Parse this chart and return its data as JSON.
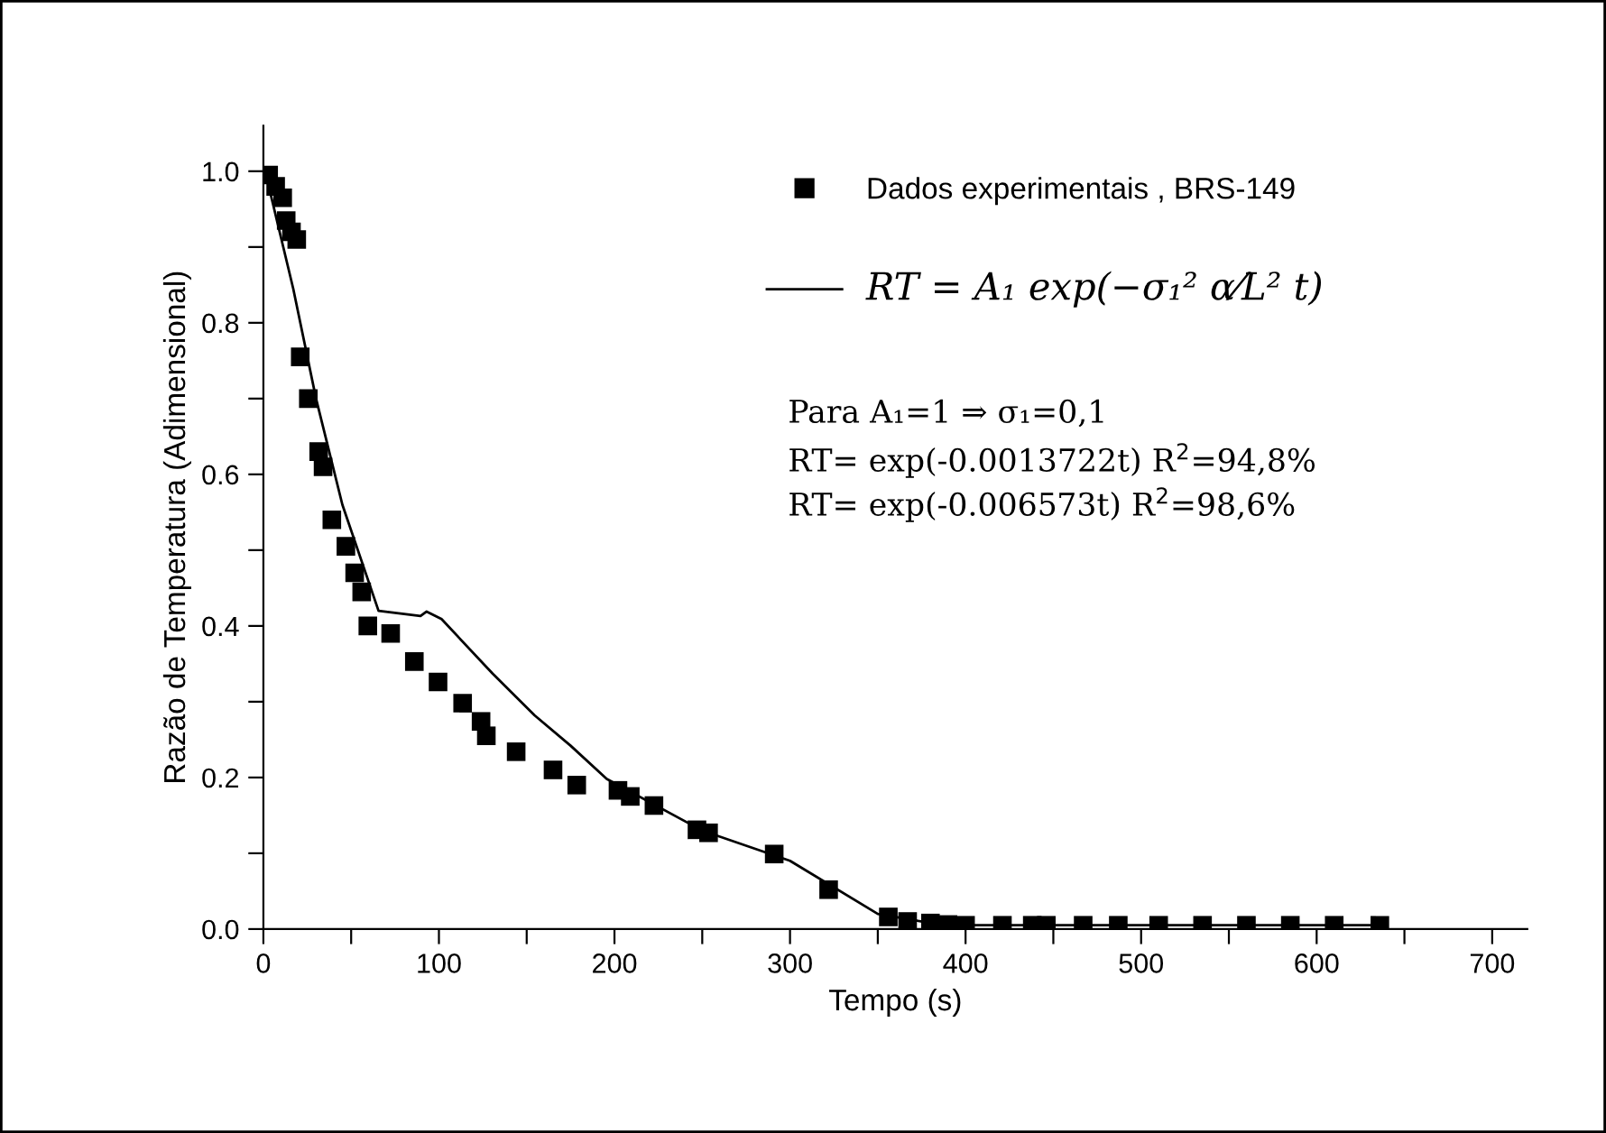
{
  "chart_data": {
    "type": "scatter",
    "xlabel": "Tempo (s)",
    "ylabel": "Razão de Temperatura (Adimensional)",
    "xlim": [
      0,
      720
    ],
    "ylim": [
      0,
      1.06
    ],
    "xticks": [
      0,
      {
        "value": 50,
        "label": null
      },
      100,
      {
        "value": 150,
        "label": null
      },
      200,
      {
        "value": 250,
        "label": null
      },
      300,
      {
        "value": 350,
        "label": null
      },
      400,
      {
        "value": 450,
        "label": null
      },
      500,
      {
        "value": 550,
        "label": null
      },
      600,
      {
        "value": 650,
        "label": null
      },
      700
    ],
    "yticks": [
      {
        "value": 0,
        "label": "0.0"
      },
      {
        "value": 0.1,
        "label": null
      },
      0.2,
      {
        "value": 0.3,
        "label": null
      },
      0.4,
      {
        "value": 0.5,
        "label": null
      },
      0.6,
      {
        "value": 0.7,
        "label": null
      },
      0.8,
      {
        "value": 0.9,
        "label": null
      },
      {
        "value": 1,
        "label": "1.0"
      }
    ],
    "grid": false,
    "legend": "top right",
    "series": [
      {
        "name": "Dados experimentais , BRS-149",
        "marker": "square",
        "color": "#000000",
        "x": [
          3,
          7,
          11,
          13,
          16,
          19,
          21,
          25.6,
          31.5,
          34,
          39,
          47,
          52,
          56,
          59.5,
          72.5,
          86,
          99.5,
          113.5,
          124,
          127,
          144,
          165,
          178.5,
          202,
          209,
          222.5,
          247,
          253.6,
          291,
          322,
          356,
          367,
          380,
          390,
          400,
          421,
          438,
          446,
          467,
          487,
          510,
          535,
          560,
          585,
          610,
          636
        ],
        "values": [
          0.995,
          0.98,
          0.965,
          0.935,
          0.92,
          0.91,
          0.755,
          0.7,
          0.63,
          0.61,
          0.54,
          0.505,
          0.47,
          0.445,
          0.4,
          0.39,
          0.353,
          0.326,
          0.298,
          0.274,
          0.255,
          0.234,
          0.21,
          0.19,
          0.183,
          0.175,
          0.163,
          0.131,
          0.127,
          0.099,
          0.052,
          0.016,
          0.01,
          0.008,
          0.006,
          0.005,
          0.005,
          0.005,
          0.005,
          0.005,
          0.005,
          0.005,
          0.005,
          0.005,
          0.005,
          0.005,
          0.005
        ]
      },
      {
        "name": "RT = A₁ exp(−σ₁² α⁄L² t)",
        "type": "line",
        "marker": "none",
        "line_style": "solid",
        "color": "#000000",
        "x": [
          1,
          17,
          30,
          45,
          65.6,
          89.5,
          93,
          101.5,
          130.6,
          154.5,
          175,
          195.6,
          250,
          300,
          350,
          380,
          400,
          635
        ],
        "values": [
          1.0,
          0.845,
          0.7,
          0.56,
          0.42,
          0.413,
          0.419,
          0.409,
          0.337,
          0.282,
          0.242,
          0.198,
          0.13,
          0.09,
          0.02,
          0.008,
          0.005,
          0.005
        ]
      }
    ],
    "annotations": [
      "Para A₁=1 ⇒ σ₁=0,1",
      "RT= exp(-0.0013722t) R$^{2}$=94,8%",
      "RT= exp(-0.006573t) R$^{2}$=98,6%"
    ]
  }
}
